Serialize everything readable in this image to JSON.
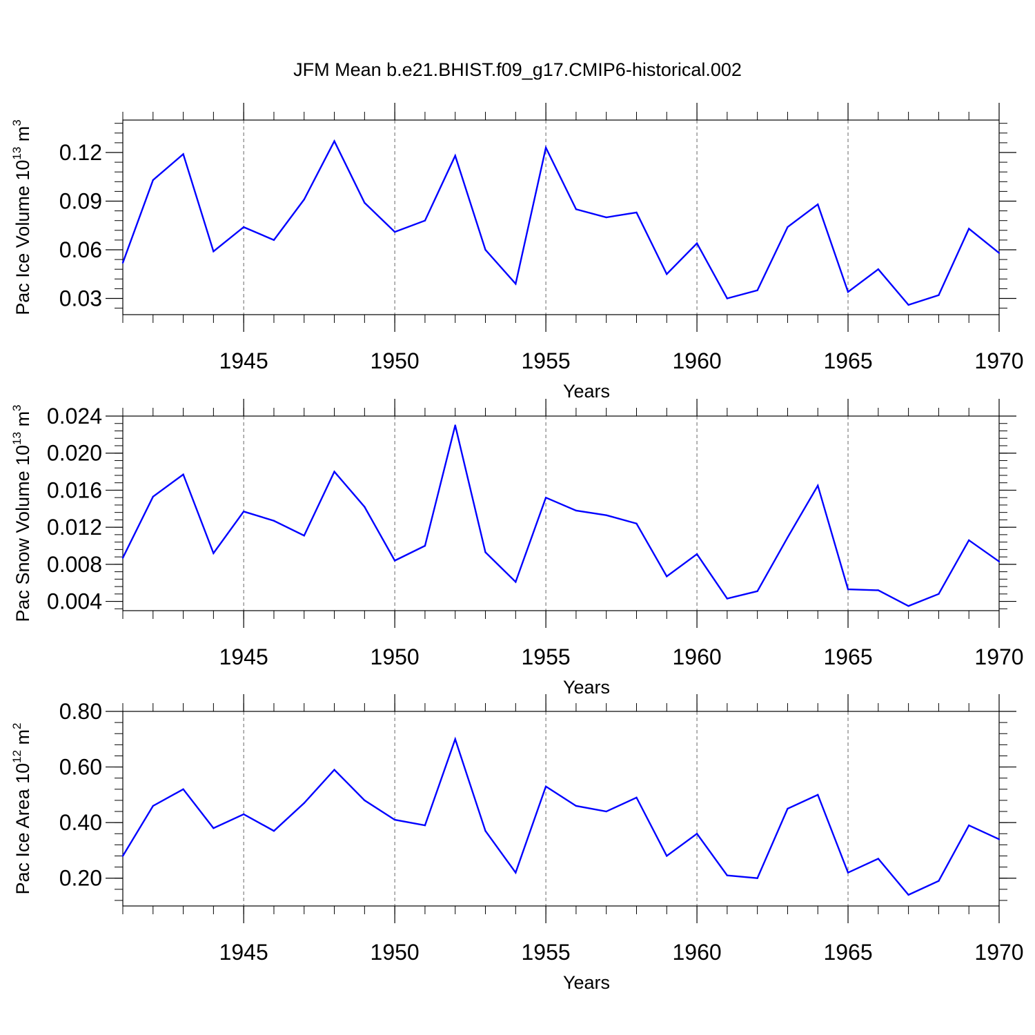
{
  "title": "JFM Mean b.e21.BHIST.f09_g17.CMIP6-historical.002",
  "series_color": "#0000ff",
  "chart_data": [
    {
      "type": "line",
      "ylabel": {
        "main": "Pac Ice Volume 10",
        "exp": "13",
        "unit": " m",
        "unit_exp": "3"
      },
      "xlabel": "Years",
      "xlim": [
        1941,
        1970
      ],
      "ylim": [
        0.02,
        0.14
      ],
      "yticks": [
        0.03,
        0.06,
        0.09,
        0.12
      ],
      "ytick_labels": [
        "0.03",
        "0.06",
        "0.09",
        "0.12"
      ],
      "xticks": [
        1945,
        1950,
        1955,
        1960,
        1965,
        1970
      ],
      "xtick_labels": [
        "1945",
        "1950",
        "1955",
        "1960",
        "1965",
        "1970"
      ],
      "x": [
        1941,
        1942,
        1943,
        1944,
        1945,
        1946,
        1947,
        1948,
        1949,
        1950,
        1951,
        1952,
        1953,
        1954,
        1955,
        1956,
        1957,
        1958,
        1959,
        1960,
        1961,
        1962,
        1963,
        1964,
        1965,
        1966,
        1967,
        1968,
        1969,
        1970
      ],
      "values": [
        0.052,
        0.103,
        0.119,
        0.059,
        0.074,
        0.066,
        0.091,
        0.127,
        0.089,
        0.071,
        0.078,
        0.118,
        0.06,
        0.039,
        0.123,
        0.085,
        0.08,
        0.083,
        0.045,
        0.064,
        0.03,
        0.035,
        0.074,
        0.088,
        0.034,
        0.048,
        0.026,
        0.032,
        0.073,
        0.058
      ]
    },
    {
      "type": "line",
      "ylabel": {
        "main": "Pac Snow Volume 10",
        "exp": "13",
        "unit": " m",
        "unit_exp": "3"
      },
      "xlabel": "Years",
      "xlim": [
        1941,
        1970
      ],
      "ylim": [
        0.003,
        0.024
      ],
      "yticks": [
        0.004,
        0.008,
        0.012,
        0.016,
        0.02,
        0.024
      ],
      "ytick_labels": [
        "0.004",
        "0.008",
        "0.012",
        "0.016",
        "0.020",
        "0.024"
      ],
      "xticks": [
        1945,
        1950,
        1955,
        1960,
        1965,
        1970
      ],
      "xtick_labels": [
        "1945",
        "1950",
        "1955",
        "1960",
        "1965",
        "1970"
      ],
      "x": [
        1941,
        1942,
        1943,
        1944,
        1945,
        1946,
        1947,
        1948,
        1949,
        1950,
        1951,
        1952,
        1953,
        1954,
        1955,
        1956,
        1957,
        1958,
        1959,
        1960,
        1961,
        1962,
        1963,
        1964,
        1965,
        1966,
        1967,
        1968,
        1969,
        1970
      ],
      "values": [
        0.0087,
        0.0153,
        0.0177,
        0.0092,
        0.0137,
        0.0127,
        0.0111,
        0.018,
        0.0142,
        0.0084,
        0.01,
        0.023,
        0.0093,
        0.0061,
        0.0152,
        0.0138,
        0.0133,
        0.0124,
        0.0067,
        0.0091,
        0.0043,
        0.0051,
        0.0109,
        0.0165,
        0.0053,
        0.0052,
        0.0035,
        0.0048,
        0.0106,
        0.0083
      ]
    },
    {
      "type": "line",
      "ylabel": {
        "main": "Pac Ice Area 10",
        "exp": "12",
        "unit": " m",
        "unit_exp": "2"
      },
      "xlabel": "Years",
      "xlim": [
        1941,
        1970
      ],
      "ylim": [
        0.1,
        0.8
      ],
      "yticks": [
        0.2,
        0.4,
        0.6,
        0.8
      ],
      "ytick_labels": [
        "0.20",
        "0.40",
        "0.60",
        "0.80"
      ],
      "xticks": [
        1945,
        1950,
        1955,
        1960,
        1965,
        1970
      ],
      "xtick_labels": [
        "1945",
        "1950",
        "1955",
        "1960",
        "1965",
        "1970"
      ],
      "x": [
        1941,
        1942,
        1943,
        1944,
        1945,
        1946,
        1947,
        1948,
        1949,
        1950,
        1951,
        1952,
        1953,
        1954,
        1955,
        1956,
        1957,
        1958,
        1959,
        1960,
        1961,
        1962,
        1963,
        1964,
        1965,
        1966,
        1967,
        1968,
        1969,
        1970
      ],
      "values": [
        0.28,
        0.46,
        0.52,
        0.38,
        0.43,
        0.37,
        0.47,
        0.59,
        0.48,
        0.41,
        0.39,
        0.7,
        0.37,
        0.22,
        0.53,
        0.46,
        0.44,
        0.49,
        0.28,
        0.36,
        0.21,
        0.2,
        0.45,
        0.5,
        0.22,
        0.27,
        0.14,
        0.19,
        0.39,
        0.34
      ]
    }
  ]
}
